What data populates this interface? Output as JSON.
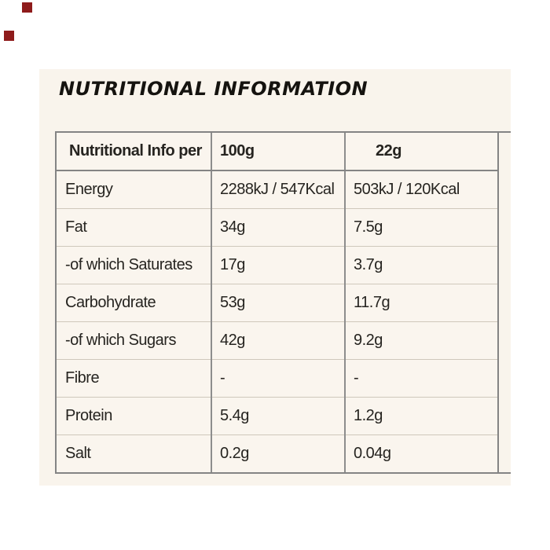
{
  "title": "NUTRITIONAL INFORMATION",
  "table": {
    "header": [
      "Nutritional Info per",
      "100g",
      "22g"
    ],
    "rows": [
      [
        "Energy",
        "2288kJ / 547Kcal",
        "503kJ / 120Kcal"
      ],
      [
        "Fat",
        "34g",
        "7.5g"
      ],
      [
        "-of which Saturates",
        "17g",
        "3.7g"
      ],
      [
        "Carbohydrate",
        "53g",
        "11.7g"
      ],
      [
        "-of which Sugars",
        "42g",
        "9.2g"
      ],
      [
        "Fibre",
        "-",
        "-"
      ],
      [
        "Protein",
        "5.4g",
        "1.2g"
      ],
      [
        "Salt",
        "0.2g",
        "0.04g"
      ]
    ]
  },
  "colors": {
    "page_background": "#ffffff",
    "panel_background": "#f9f4ec",
    "table_border": "#848484",
    "row_divider": "#cfc8bb",
    "text": "#262420",
    "decoration_square": "#8e1b1b"
  }
}
